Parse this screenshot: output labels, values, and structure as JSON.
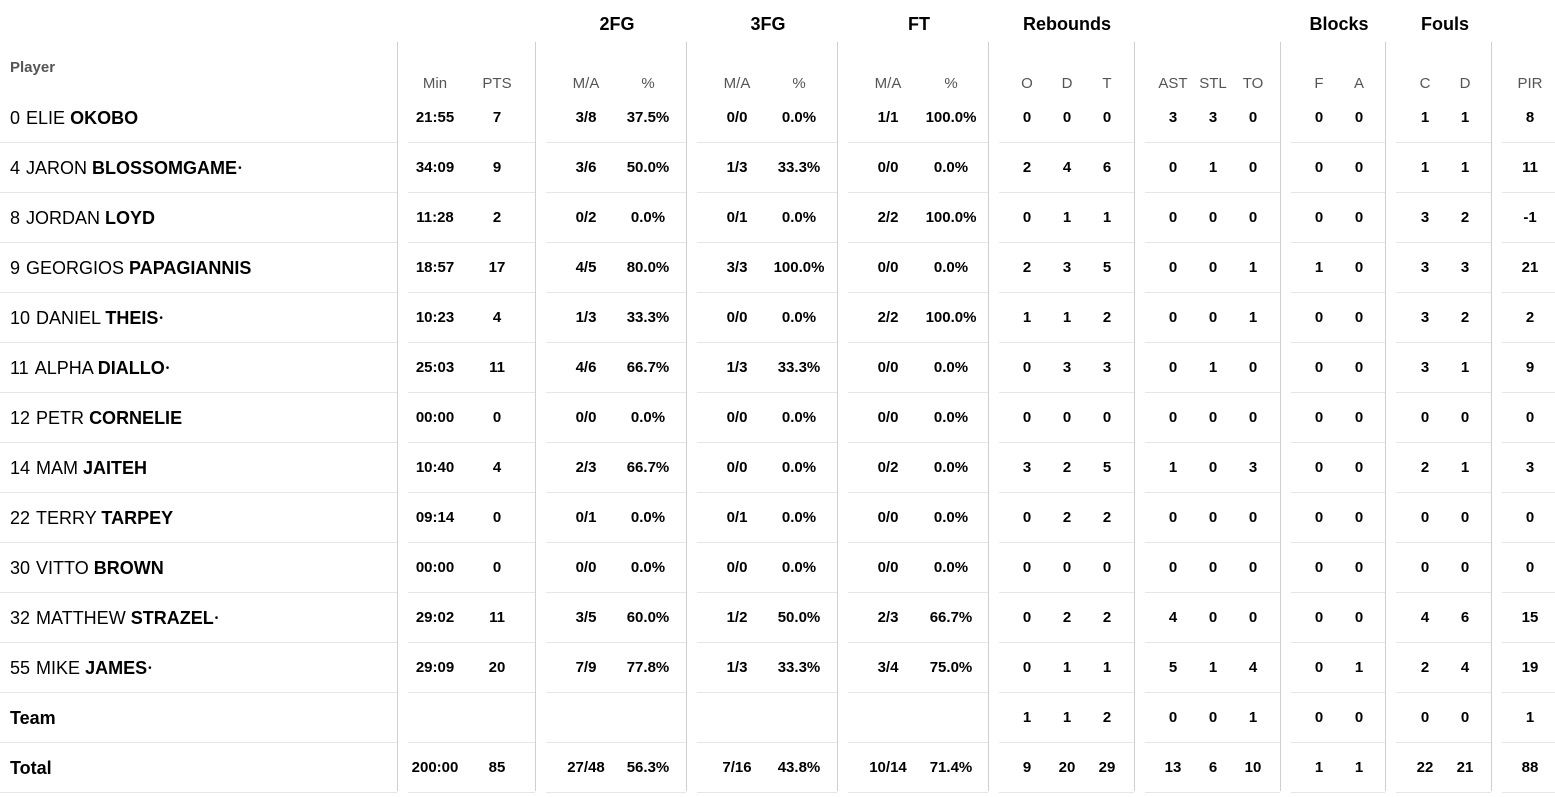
{
  "groups": {
    "fg2": "2FG",
    "fg3": "3FG",
    "ft": "FT",
    "rebounds": "Rebounds",
    "blocks": "Blocks",
    "fouls": "Fouls"
  },
  "columns": {
    "player": "Player",
    "min": "Min",
    "pts": "PTS",
    "fg2_ma": "M/A",
    "fg2_pct": "%",
    "fg3_ma": "M/A",
    "fg3_pct": "%",
    "ft_ma": "M/A",
    "ft_pct": "%",
    "reb_o": "O",
    "reb_d": "D",
    "reb_t": "T",
    "ast": "AST",
    "stl": "STL",
    "to": "TO",
    "blk_f": "F",
    "blk_a": "A",
    "foul_c": "C",
    "foul_d": "D",
    "pir": "PIR"
  },
  "players": [
    {
      "num": "0",
      "first": "ELIE",
      "last": "OKOBO",
      "starter": false,
      "min": "21:55",
      "pts": "7",
      "fg2_ma": "3/8",
      "fg2_pct": "37.5%",
      "fg3_ma": "0/0",
      "fg3_pct": "0.0%",
      "ft_ma": "1/1",
      "ft_pct": "100.0%",
      "reb_o": "0",
      "reb_d": "0",
      "reb_t": "0",
      "ast": "3",
      "stl": "3",
      "to": "0",
      "blk_f": "0",
      "blk_a": "0",
      "foul_c": "1",
      "foul_d": "1",
      "pir": "8"
    },
    {
      "num": "4",
      "first": "JARON",
      "last": "BLOSSOMGAME",
      "starter": true,
      "min": "34:09",
      "pts": "9",
      "fg2_ma": "3/6",
      "fg2_pct": "50.0%",
      "fg3_ma": "1/3",
      "fg3_pct": "33.3%",
      "ft_ma": "0/0",
      "ft_pct": "0.0%",
      "reb_o": "2",
      "reb_d": "4",
      "reb_t": "6",
      "ast": "0",
      "stl": "1",
      "to": "0",
      "blk_f": "0",
      "blk_a": "0",
      "foul_c": "1",
      "foul_d": "1",
      "pir": "11"
    },
    {
      "num": "8",
      "first": "JORDAN",
      "last": "LOYD",
      "starter": false,
      "min": "11:28",
      "pts": "2",
      "fg2_ma": "0/2",
      "fg2_pct": "0.0%",
      "fg3_ma": "0/1",
      "fg3_pct": "0.0%",
      "ft_ma": "2/2",
      "ft_pct": "100.0%",
      "reb_o": "0",
      "reb_d": "1",
      "reb_t": "1",
      "ast": "0",
      "stl": "0",
      "to": "0",
      "blk_f": "0",
      "blk_a": "0",
      "foul_c": "3",
      "foul_d": "2",
      "pir": "-1"
    },
    {
      "num": "9",
      "first": "GEORGIOS",
      "last": "PAPAGIANNIS",
      "starter": false,
      "min": "18:57",
      "pts": "17",
      "fg2_ma": "4/5",
      "fg2_pct": "80.0%",
      "fg3_ma": "3/3",
      "fg3_pct": "100.0%",
      "ft_ma": "0/0",
      "ft_pct": "0.0%",
      "reb_o": "2",
      "reb_d": "3",
      "reb_t": "5",
      "ast": "0",
      "stl": "0",
      "to": "1",
      "blk_f": "1",
      "blk_a": "0",
      "foul_c": "3",
      "foul_d": "3",
      "pir": "21"
    },
    {
      "num": "10",
      "first": "DANIEL",
      "last": "THEIS",
      "starter": true,
      "min": "10:23",
      "pts": "4",
      "fg2_ma": "1/3",
      "fg2_pct": "33.3%",
      "fg3_ma": "0/0",
      "fg3_pct": "0.0%",
      "ft_ma": "2/2",
      "ft_pct": "100.0%",
      "reb_o": "1",
      "reb_d": "1",
      "reb_t": "2",
      "ast": "0",
      "stl": "0",
      "to": "1",
      "blk_f": "0",
      "blk_a": "0",
      "foul_c": "3",
      "foul_d": "2",
      "pir": "2"
    },
    {
      "num": "11",
      "first": "ALPHA",
      "last": "DIALLO",
      "starter": true,
      "min": "25:03",
      "pts": "11",
      "fg2_ma": "4/6",
      "fg2_pct": "66.7%",
      "fg3_ma": "1/3",
      "fg3_pct": "33.3%",
      "ft_ma": "0/0",
      "ft_pct": "0.0%",
      "reb_o": "0",
      "reb_d": "3",
      "reb_t": "3",
      "ast": "0",
      "stl": "1",
      "to": "0",
      "blk_f": "0",
      "blk_a": "0",
      "foul_c": "3",
      "foul_d": "1",
      "pir": "9"
    },
    {
      "num": "12",
      "first": "PETR",
      "last": "CORNELIE",
      "starter": false,
      "min": "00:00",
      "pts": "0",
      "fg2_ma": "0/0",
      "fg2_pct": "0.0%",
      "fg3_ma": "0/0",
      "fg3_pct": "0.0%",
      "ft_ma": "0/0",
      "ft_pct": "0.0%",
      "reb_o": "0",
      "reb_d": "0",
      "reb_t": "0",
      "ast": "0",
      "stl": "0",
      "to": "0",
      "blk_f": "0",
      "blk_a": "0",
      "foul_c": "0",
      "foul_d": "0",
      "pir": "0"
    },
    {
      "num": "14",
      "first": "MAM",
      "last": "JAITEH",
      "starter": false,
      "min": "10:40",
      "pts": "4",
      "fg2_ma": "2/3",
      "fg2_pct": "66.7%",
      "fg3_ma": "0/0",
      "fg3_pct": "0.0%",
      "ft_ma": "0/2",
      "ft_pct": "0.0%",
      "reb_o": "3",
      "reb_d": "2",
      "reb_t": "5",
      "ast": "1",
      "stl": "0",
      "to": "3",
      "blk_f": "0",
      "blk_a": "0",
      "foul_c": "2",
      "foul_d": "1",
      "pir": "3"
    },
    {
      "num": "22",
      "first": "TERRY",
      "last": "TARPEY",
      "starter": false,
      "min": "09:14",
      "pts": "0",
      "fg2_ma": "0/1",
      "fg2_pct": "0.0%",
      "fg3_ma": "0/1",
      "fg3_pct": "0.0%",
      "ft_ma": "0/0",
      "ft_pct": "0.0%",
      "reb_o": "0",
      "reb_d": "2",
      "reb_t": "2",
      "ast": "0",
      "stl": "0",
      "to": "0",
      "blk_f": "0",
      "blk_a": "0",
      "foul_c": "0",
      "foul_d": "0",
      "pir": "0"
    },
    {
      "num": "30",
      "first": "VITTO",
      "last": "BROWN",
      "starter": false,
      "min": "00:00",
      "pts": "0",
      "fg2_ma": "0/0",
      "fg2_pct": "0.0%",
      "fg3_ma": "0/0",
      "fg3_pct": "0.0%",
      "ft_ma": "0/0",
      "ft_pct": "0.0%",
      "reb_o": "0",
      "reb_d": "0",
      "reb_t": "0",
      "ast": "0",
      "stl": "0",
      "to": "0",
      "blk_f": "0",
      "blk_a": "0",
      "foul_c": "0",
      "foul_d": "0",
      "pir": "0"
    },
    {
      "num": "32",
      "first": "MATTHEW",
      "last": "STRAZEL",
      "starter": true,
      "min": "29:02",
      "pts": "11",
      "fg2_ma": "3/5",
      "fg2_pct": "60.0%",
      "fg3_ma": "1/2",
      "fg3_pct": "50.0%",
      "ft_ma": "2/3",
      "ft_pct": "66.7%",
      "reb_o": "0",
      "reb_d": "2",
      "reb_t": "2",
      "ast": "4",
      "stl": "0",
      "to": "0",
      "blk_f": "0",
      "blk_a": "0",
      "foul_c": "4",
      "foul_d": "6",
      "pir": "15"
    },
    {
      "num": "55",
      "first": "MIKE",
      "last": "JAMES",
      "starter": true,
      "min": "29:09",
      "pts": "20",
      "fg2_ma": "7/9",
      "fg2_pct": "77.8%",
      "fg3_ma": "1/3",
      "fg3_pct": "33.3%",
      "ft_ma": "3/4",
      "ft_pct": "75.0%",
      "reb_o": "0",
      "reb_d": "1",
      "reb_t": "1",
      "ast": "5",
      "stl": "1",
      "to": "4",
      "blk_f": "0",
      "blk_a": "1",
      "foul_c": "2",
      "foul_d": "4",
      "pir": "19"
    }
  ],
  "team": {
    "label": "Team",
    "min": "",
    "pts": "",
    "fg2_ma": "",
    "fg2_pct": "",
    "fg3_ma": "",
    "fg3_pct": "",
    "ft_ma": "",
    "ft_pct": "",
    "reb_o": "1",
    "reb_d": "1",
    "reb_t": "2",
    "ast": "0",
    "stl": "0",
    "to": "1",
    "blk_f": "0",
    "blk_a": "0",
    "foul_c": "0",
    "foul_d": "0",
    "pir": "1"
  },
  "total": {
    "label": "Total",
    "min": "200:00",
    "pts": "85",
    "fg2_ma": "27/48",
    "fg2_pct": "56.3%",
    "fg3_ma": "7/16",
    "fg3_pct": "43.8%",
    "ft_ma": "10/14",
    "ft_pct": "71.4%",
    "reb_o": "9",
    "reb_d": "20",
    "reb_t": "29",
    "ast": "13",
    "stl": "6",
    "to": "10",
    "blk_f": "1",
    "blk_a": "1",
    "foul_c": "22",
    "foul_d": "21",
    "pir": "88"
  },
  "starter_mark": "•"
}
